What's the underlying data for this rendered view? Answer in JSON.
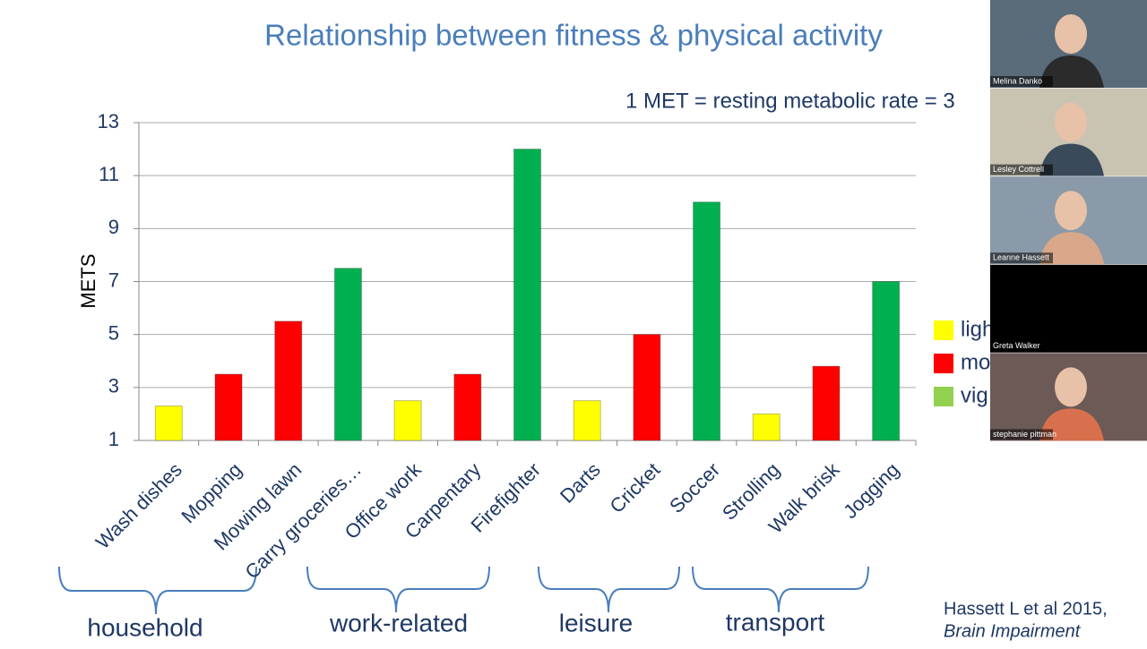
{
  "chart_data": {
    "type": "bar",
    "title": "Relationship between fitness & physical activity",
    "subtitle": "1 MET = resting metabolic rate = 3",
    "y_label": "METS",
    "categories": [
      "Wash dishes",
      "Mopping",
      "Mowing lawn",
      "Carry groceries…",
      "Office work",
      "Carpentary",
      "Firefighter",
      "Darts",
      "Cricket",
      "Soccer",
      "Strolling",
      "Walk brisk",
      "Jogging"
    ],
    "values": [
      2.3,
      3.5,
      5.5,
      7.5,
      2.5,
      3.5,
      12,
      2.5,
      5,
      10,
      2,
      3.8,
      7
    ],
    "colors": [
      "#ffff00",
      "#ff0000",
      "#ff0000",
      "#00b050",
      "#ffff00",
      "#ff0000",
      "#00b050",
      "#ffff00",
      "#ff0000",
      "#00b050",
      "#ffff00",
      "#ff0000",
      "#00b050"
    ],
    "legend": [
      {
        "label": "ligh",
        "color": "#ffff00"
      },
      {
        "label": "mo",
        "color": "#ff0000"
      },
      {
        "label": "vig",
        "color": "#92d050"
      }
    ],
    "ylim": [
      1,
      13
    ],
    "yticks": [
      1,
      3,
      5,
      7,
      9,
      11,
      13
    ],
    "grid": true,
    "groups": [
      "household",
      "work-related",
      "leisure",
      "transport"
    ]
  },
  "citation": {
    "line1": "Hassett L et al 2015,",
    "line2": "Brain Impairment"
  },
  "participants": [
    "Melina Danko",
    "Lesley Cottrell",
    "Leanne Hassett",
    "Greta Walker",
    "stephanie pittman"
  ]
}
